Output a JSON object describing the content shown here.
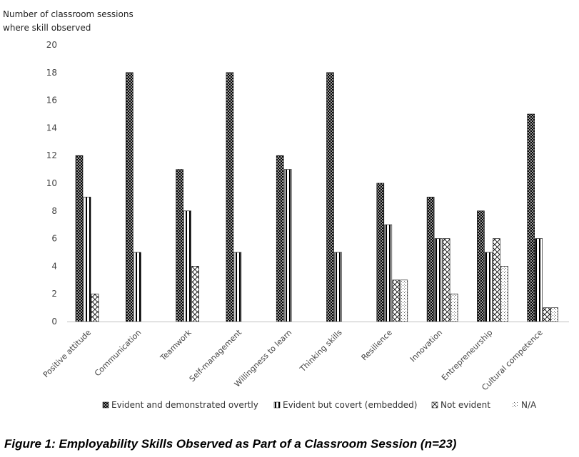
{
  "chart_data": {
    "type": "bar",
    "ylabel_lines": [
      "Number of classroom sessions",
      "where skill observed"
    ],
    "ylim": [
      0,
      20
    ],
    "yticks": [
      0,
      2,
      4,
      6,
      8,
      10,
      12,
      14,
      16,
      18,
      20
    ],
    "grid": false,
    "legend_position": "bottom",
    "categories": [
      "Positive attitude",
      "Communication",
      "Teamwork",
      "Self-management",
      "Willingness to learn",
      "Thinking skills",
      "Resilience",
      "Innovation",
      "Entrepreneurship",
      "Cultural competence"
    ],
    "series": [
      {
        "name": "Evident and demonstrated overtly",
        "pattern": "crosshatch-dense",
        "values": [
          12,
          18,
          11,
          18,
          12,
          18,
          10,
          9,
          8,
          15
        ]
      },
      {
        "name": "Evident but covert (embedded)",
        "pattern": "vertical-stripes",
        "values": [
          9,
          5,
          8,
          5,
          11,
          5,
          7,
          6,
          5,
          6
        ]
      },
      {
        "name": "Not evident",
        "pattern": "diagonal-cross",
        "values": [
          2,
          0,
          4,
          0,
          0,
          0,
          3,
          6,
          6,
          1
        ]
      },
      {
        "name": "N/A",
        "pattern": "dots",
        "values": [
          0,
          0,
          0,
          0,
          0,
          0,
          3,
          2,
          4,
          1
        ]
      }
    ],
    "colors": {
      "ink": "#000000",
      "axis": "#bfbfbf",
      "tick_text": "#444444"
    }
  },
  "caption": "Figure 1: Employability Skills Observed as Part of a Classroom Session (n=23)"
}
